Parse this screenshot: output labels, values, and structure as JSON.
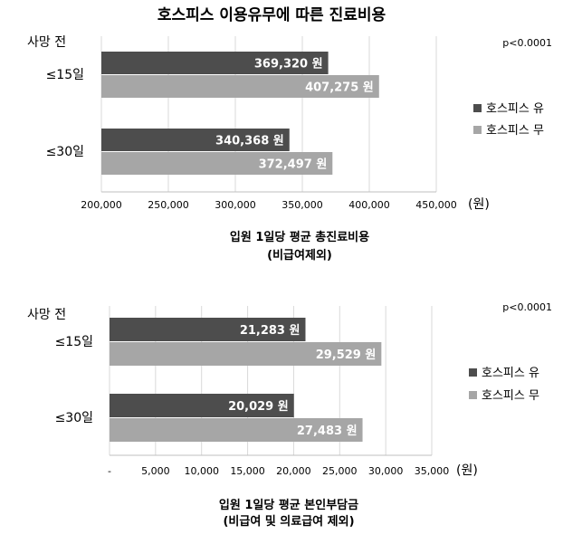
{
  "title": "호스피스 이용유무에 따른 진료비용",
  "colors": {
    "series_yes": "#4d4d4d",
    "series_no": "#a6a6a6",
    "grid": "#d9d9d9",
    "axis": "#bfbfbf"
  },
  "chart_data": [
    {
      "type": "bar",
      "orientation": "horizontal",
      "group_header": "사망 전",
      "annotation": "p<0.0001",
      "categories": [
        "≤15일",
        "≤30일"
      ],
      "series": [
        {
          "name": "호스피스 유",
          "values": [
            369320,
            340368
          ],
          "labels": [
            "369,320 원",
            "340,368 원"
          ]
        },
        {
          "name": "호스피스 무",
          "values": [
            407275,
            372497
          ],
          "labels": [
            "407,275 원",
            "372,497 원"
          ]
        }
      ],
      "xlim": [
        200000,
        450000
      ],
      "xticks": [
        200000,
        250000,
        300000,
        350000,
        400000,
        450000
      ],
      "xtick_labels": [
        "200,000",
        "250,000",
        "300,000",
        "350,000",
        "400,000",
        "450,000"
      ],
      "unit_label": "(원)",
      "xlabel": [
        "입원 1일당 평균 총진료비용",
        "(비급여제외)"
      ],
      "grid": true,
      "legend_position": "right"
    },
    {
      "type": "bar",
      "orientation": "horizontal",
      "group_header": "사망 전",
      "annotation": "p<0.0001",
      "categories": [
        "≤15일",
        "≤30일"
      ],
      "series": [
        {
          "name": "호스피스 유",
          "values": [
            21283,
            20029
          ],
          "labels": [
            "21,283 원",
            "20,029 원"
          ]
        },
        {
          "name": "호스피스 무",
          "values": [
            29529,
            27483
          ],
          "labels": [
            "29,529 원",
            "27,483 원"
          ]
        }
      ],
      "xlim": [
        0,
        35000
      ],
      "xticks": [
        0,
        5000,
        10000,
        15000,
        20000,
        25000,
        30000,
        35000
      ],
      "xtick_labels": [
        "-",
        "5,000",
        "10,000",
        "15,000",
        "20,000",
        "25,000",
        "30,000",
        "35,000"
      ],
      "unit_label": "(원)",
      "xlabel": [
        "입원 1일당 평균 본인부담금",
        "(비급여 및 의료급여 제외)"
      ],
      "grid": true,
      "legend_position": "right"
    }
  ]
}
